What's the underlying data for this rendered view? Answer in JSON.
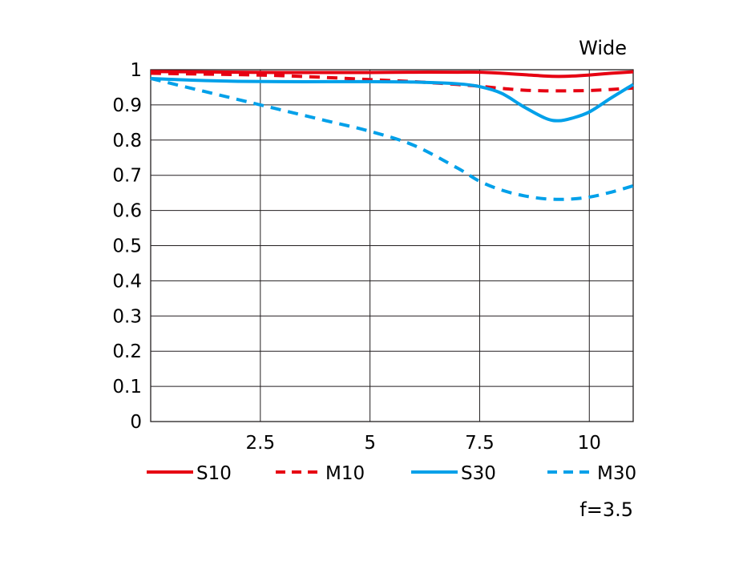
{
  "chart_data": {
    "type": "line",
    "title": "",
    "corner_label": "Wide",
    "footnote": "f=3.5",
    "xlabel": "",
    "ylabel": "",
    "xlim": [
      0,
      11
    ],
    "ylim": [
      0,
      1
    ],
    "x_ticks": [
      2.5,
      5,
      7.5,
      10
    ],
    "x_tick_labels": [
      "2.5",
      "5",
      "7.5",
      "10"
    ],
    "y_ticks": [
      0,
      0.1,
      0.2,
      0.3,
      0.4,
      0.5,
      0.6,
      0.7,
      0.8,
      0.9,
      1
    ],
    "y_tick_labels": [
      "0",
      "0.1",
      "0.2",
      "0.3",
      "0.4",
      "0.5",
      "0.6",
      "0.7",
      "0.8",
      "0.9",
      "1"
    ],
    "grid": true,
    "legend_placement": "bottom",
    "series": [
      {
        "name": "S10",
        "color": "#e60012",
        "dash": "solid",
        "x": [
          0,
          1,
          2,
          3,
          4,
          5,
          6,
          7,
          7.5,
          8,
          8.5,
          9,
          9.3,
          9.6,
          10,
          10.5,
          11
        ],
        "y": [
          0.995,
          0.994,
          0.993,
          0.992,
          0.992,
          0.992,
          0.993,
          0.993,
          0.993,
          0.99,
          0.986,
          0.982,
          0.981,
          0.982,
          0.985,
          0.99,
          0.994
        ]
      },
      {
        "name": "M10",
        "color": "#e60012",
        "dash": "dashed",
        "x": [
          0,
          1,
          2,
          3,
          4,
          5,
          6,
          7,
          7.5,
          8,
          8.5,
          9,
          9.5,
          10,
          10.5,
          11
        ],
        "y": [
          0.99,
          0.988,
          0.986,
          0.983,
          0.978,
          0.972,
          0.966,
          0.958,
          0.953,
          0.947,
          0.942,
          0.94,
          0.94,
          0.941,
          0.944,
          0.948
        ]
      },
      {
        "name": "S30",
        "color": "#00a0e9",
        "dash": "solid",
        "x": [
          0,
          1,
          2,
          3,
          4,
          5,
          6,
          7,
          7.5,
          8,
          8.5,
          9,
          9.3,
          9.6,
          10,
          10.5,
          11
        ],
        "y": [
          0.975,
          0.97,
          0.967,
          0.966,
          0.966,
          0.966,
          0.965,
          0.96,
          0.952,
          0.933,
          0.895,
          0.862,
          0.855,
          0.862,
          0.88,
          0.92,
          0.958
        ]
      },
      {
        "name": "M30",
        "color": "#00a0e9",
        "dash": "dashed",
        "x": [
          0,
          1,
          2,
          3,
          4,
          5,
          6,
          7,
          7.5,
          8,
          8.5,
          9,
          9.5,
          10,
          10.5,
          11
        ],
        "y": [
          0.975,
          0.945,
          0.915,
          0.885,
          0.855,
          0.825,
          0.785,
          0.72,
          0.683,
          0.658,
          0.642,
          0.633,
          0.632,
          0.638,
          0.652,
          0.67
        ]
      }
    ]
  }
}
